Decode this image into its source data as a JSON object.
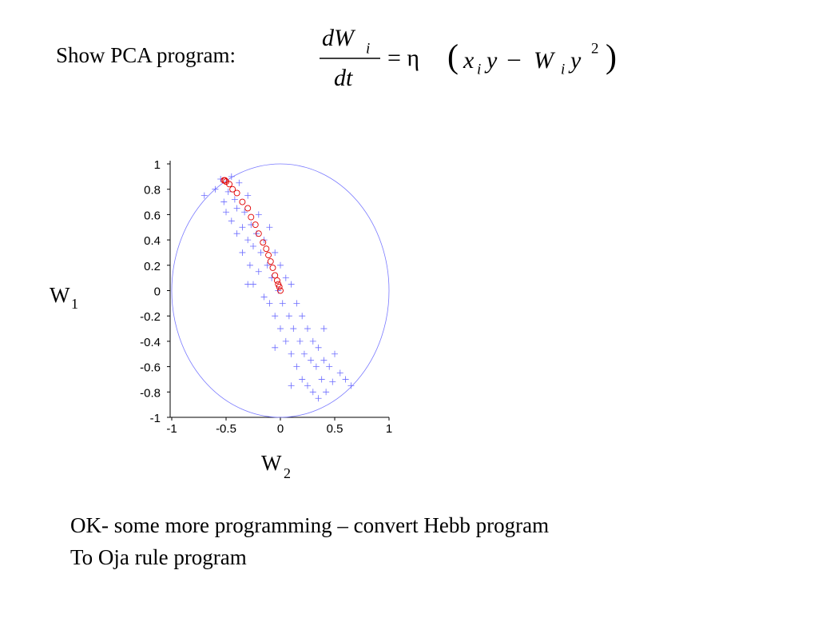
{
  "header": {
    "title": "Show PCA program:",
    "formula": {
      "num": "dW",
      "num_sub": "i",
      "den": "dt",
      "eq": "= η",
      "open": "(",
      "t1": "x",
      "t1_sub": "i",
      "t2": "y",
      "minus": "–",
      "t3": "W",
      "t3_sub": "i",
      "t4": "y",
      "t4_sup": "2",
      "close": ")"
    }
  },
  "chart_data": {
    "type": "scatter",
    "xlabel": "W",
    "xlabel_sub": "2",
    "ylabel": "W",
    "ylabel_sub": "1",
    "xlim": [
      -1,
      1
    ],
    "ylim": [
      -1,
      1
    ],
    "xticks": [
      -1,
      -0.5,
      0,
      0.5,
      1
    ],
    "yticks": [
      -1,
      -0.8,
      -0.6,
      -0.4,
      -0.2,
      0,
      0.2,
      0.4,
      0.6,
      0.8,
      1
    ],
    "series": [
      {
        "marker": "plus",
        "color": "#6b6bff",
        "x": [
          -0.6,
          -0.55,
          -0.52,
          -0.5,
          -0.48,
          -0.45,
          -0.45,
          -0.42,
          -0.4,
          -0.4,
          -0.38,
          -0.35,
          -0.35,
          -0.33,
          -0.3,
          -0.3,
          -0.28,
          -0.27,
          -0.25,
          -0.25,
          -0.22,
          -0.2,
          -0.2,
          -0.18,
          -0.15,
          -0.15,
          -0.12,
          -0.1,
          -0.1,
          -0.08,
          -0.05,
          -0.05,
          -0.02,
          0,
          0,
          0.02,
          0.05,
          0.05,
          0.08,
          0.1,
          0.1,
          0.12,
          0.15,
          0.15,
          0.18,
          0.2,
          0.2,
          0.22,
          0.25,
          0.25,
          0.28,
          0.3,
          0.3,
          0.33,
          0.35,
          0.38,
          0.4,
          0.42,
          0.45,
          0.48,
          0.5,
          0.55,
          0.6,
          0.65,
          -0.7,
          0.35,
          -0.05,
          0.1,
          -0.3,
          0.4
        ],
        "y": [
          0.8,
          0.88,
          0.7,
          0.62,
          0.78,
          0.55,
          0.9,
          0.72,
          0.45,
          0.65,
          0.85,
          0.5,
          0.3,
          0.62,
          0.4,
          0.75,
          0.2,
          0.52,
          0.35,
          0.05,
          0.45,
          0.15,
          0.6,
          0.3,
          -0.05,
          0.4,
          0.2,
          -0.1,
          0.5,
          0.1,
          -0.2,
          0.3,
          0,
          -0.3,
          0.2,
          -0.1,
          -0.4,
          0.1,
          -0.2,
          -0.5,
          0.05,
          -0.3,
          -0.6,
          -0.1,
          -0.4,
          -0.7,
          -0.2,
          -0.5,
          -0.3,
          -0.75,
          -0.55,
          -0.4,
          -0.8,
          -0.6,
          -0.45,
          -0.7,
          -0.55,
          -0.8,
          -0.6,
          -0.72,
          -0.5,
          -0.65,
          -0.7,
          -0.75,
          0.75,
          -0.85,
          -0.45,
          -0.75,
          0.05,
          -0.3
        ]
      },
      {
        "marker": "circle",
        "color": "#e00000",
        "x": [
          0,
          -0.01,
          -0.02,
          -0.03,
          -0.05,
          -0.07,
          -0.09,
          -0.11,
          -0.13,
          -0.16,
          -0.2,
          -0.23,
          -0.27,
          -0.3,
          -0.35,
          -0.4,
          -0.44,
          -0.47,
          -0.5,
          -0.51,
          -0.52
        ],
        "y": [
          0,
          0.03,
          0.05,
          0.08,
          0.12,
          0.18,
          0.23,
          0.28,
          0.33,
          0.38,
          0.45,
          0.52,
          0.58,
          0.65,
          0.7,
          0.77,
          0.8,
          0.84,
          0.86,
          0.87,
          0.87
        ]
      }
    ]
  },
  "footer": {
    "lines": [
      "OK- some more programming – convert Hebb program",
      "To Oja rule program"
    ]
  }
}
